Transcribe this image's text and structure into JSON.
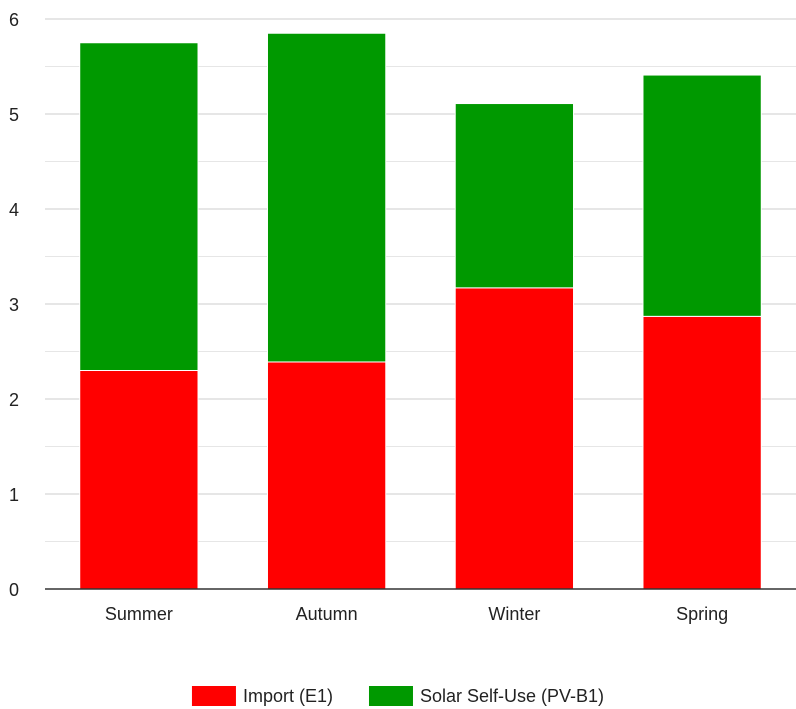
{
  "chart_data": {
    "type": "stacked_bar",
    "categories": [
      "Summer",
      "Autumn",
      "Winter",
      "Spring"
    ],
    "series": [
      {
        "name": "Import (E1)",
        "color": "#ff0000",
        "values": [
          2.3,
          2.39,
          3.17,
          2.87
        ]
      },
      {
        "name": "Solar Self-Use (PV-B1)",
        "color": "#009900",
        "values": [
          3.45,
          3.46,
          1.94,
          2.54
        ]
      }
    ],
    "ylim": [
      0,
      6
    ],
    "yticks": [
      0,
      1,
      2,
      3,
      4,
      5,
      6
    ],
    "minor_yticks": [
      0.5,
      1.5,
      2.5,
      3.5,
      4.5,
      5.5
    ],
    "grid": true,
    "legend": "bottom"
  }
}
